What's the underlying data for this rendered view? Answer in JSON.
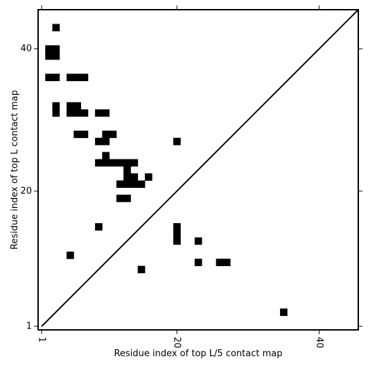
{
  "chart_data": {
    "type": "heatmap",
    "title": "",
    "xlabel": "Residue index of top L/5 contact map",
    "ylabel": "Residue index of top L contact map",
    "xlim": [
      0.5,
      45.5
    ],
    "ylim": [
      0.5,
      45.5
    ],
    "xticks": [
      1,
      20,
      40
    ],
    "yticks": [
      1,
      20,
      40
    ],
    "xtick_labels": [
      "1",
      "20",
      "40"
    ],
    "ytick_labels": [
      "1",
      "20",
      "40"
    ],
    "x_tick_label_rotation": "vertical",
    "diagonal_line": true,
    "cell_color": "#000000",
    "background_color": "#ffffff",
    "upper_triangle_cells": [
      [
        3,
        43
      ],
      [
        2,
        40
      ],
      [
        3,
        40
      ],
      [
        2,
        39
      ],
      [
        3,
        39
      ],
      [
        2,
        36
      ],
      [
        3,
        36
      ],
      [
        5,
        36
      ],
      [
        6,
        36
      ],
      [
        7,
        36
      ],
      [
        3,
        32
      ],
      [
        5,
        32
      ],
      [
        6,
        32
      ],
      [
        3,
        31
      ],
      [
        5,
        31
      ],
      [
        6,
        31
      ],
      [
        7,
        31
      ],
      [
        9,
        31
      ],
      [
        10,
        31
      ],
      [
        6,
        28
      ],
      [
        7,
        28
      ],
      [
        10,
        28
      ],
      [
        11,
        28
      ],
      [
        9,
        27
      ],
      [
        10,
        27
      ],
      [
        20,
        27
      ],
      [
        10,
        25
      ],
      [
        9,
        24
      ],
      [
        10,
        24
      ],
      [
        11,
        24
      ],
      [
        12,
        24
      ],
      [
        13,
        24
      ],
      [
        14,
        24
      ],
      [
        13,
        23
      ],
      [
        13,
        22
      ],
      [
        14,
        22
      ],
      [
        16,
        22
      ],
      [
        12,
        21
      ],
      [
        13,
        21
      ],
      [
        14,
        21
      ],
      [
        15,
        21
      ],
      [
        12,
        19
      ],
      [
        13,
        19
      ],
      [
        9,
        15
      ]
    ],
    "lower_triangle_cells": [
      [
        20,
        15
      ],
      [
        20,
        14
      ],
      [
        20,
        13
      ],
      [
        23,
        13
      ],
      [
        5,
        11
      ],
      [
        23,
        10
      ],
      [
        26,
        10
      ],
      [
        27,
        10
      ],
      [
        15,
        9
      ],
      [
        35,
        3
      ]
    ]
  }
}
